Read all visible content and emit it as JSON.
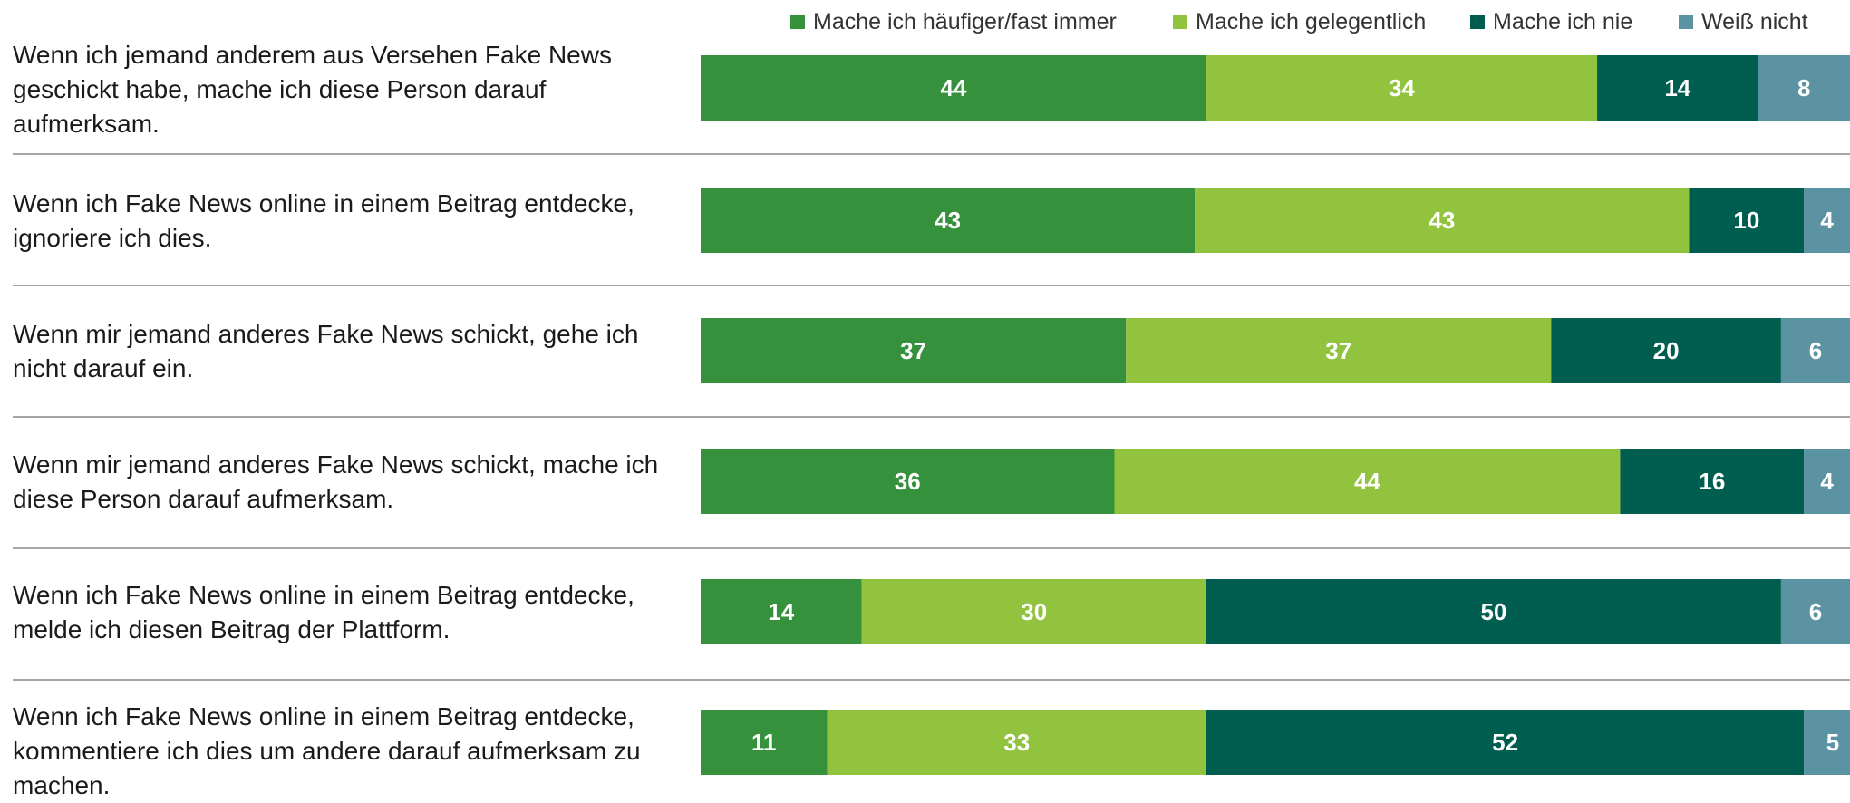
{
  "chart_data": {
    "type": "bar",
    "orientation": "horizontal",
    "stacked": true,
    "title": "",
    "xlabel": "",
    "ylabel": "",
    "xlim": [
      0,
      100
    ],
    "grid": false,
    "legend_position": "top-right",
    "categories": [
      "Wenn ich jemand anderem aus Versehen Fake News geschickt habe, mache ich diese Person darauf aufmerksam.",
      "Wenn ich Fake News online in einem Beitrag entdecke, ignoriere ich dies.",
      "Wenn mir jemand anderes Fake News schickt, gehe ich nicht darauf ein.",
      "Wenn mir jemand anderes Fake News schickt, mache ich diese Person darauf aufmerksam.",
      "Wenn ich Fake News online in einem Beitrag entdecke, melde ich diesen Beitrag der Plattform.",
      "Wenn ich Fake News online in einem Beitrag entdecke, kommentiere ich dies um andere darauf aufmerksam zu machen."
    ],
    "series": [
      {
        "name": "Mache ich häufiger/fast immer",
        "color": "#36913d",
        "values": [
          44,
          43,
          37,
          36,
          14,
          11
        ]
      },
      {
        "name": "Mache ich gelegentlich",
        "color": "#92c33e",
        "values": [
          34,
          43,
          37,
          44,
          30,
          33
        ]
      },
      {
        "name": "Mache ich nie",
        "color": "#005e50",
        "values": [
          14,
          10,
          20,
          16,
          50,
          52
        ]
      },
      {
        "name": "Weiß nicht",
        "color": "#5b93a3",
        "values": [
          8,
          4,
          6,
          4,
          6,
          5
        ]
      }
    ]
  }
}
